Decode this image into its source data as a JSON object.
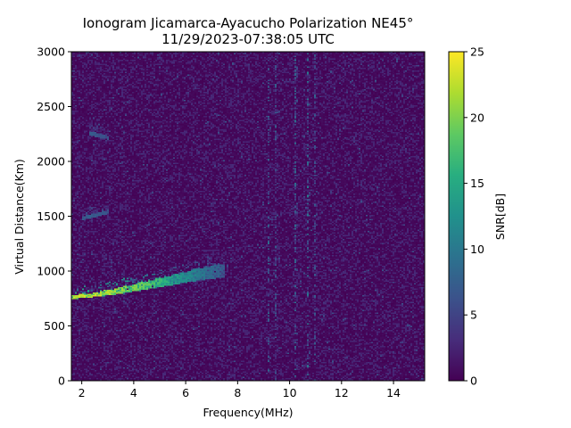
{
  "chart_data": {
    "type": "heatmap",
    "title": "Ionogram Jicamarca-Ayacucho Polarization NE45°",
    "subtitle": "11/29/2023-07:38:05 UTC",
    "xlabel": "Frequency(MHz)",
    "ylabel": "Virtual Distance(Km)",
    "xlim": [
      1.6,
      15.2
    ],
    "ylim": [
      0,
      3000
    ],
    "xticks": [
      2,
      4,
      6,
      8,
      10,
      12,
      14
    ],
    "yticks": [
      0,
      500,
      1000,
      1500,
      2000,
      2500,
      3000
    ],
    "grid": false,
    "colormap": "viridis",
    "colorbar": {
      "label": "SNR[dB]",
      "range": [
        0,
        25
      ],
      "ticks": [
        0,
        5,
        10,
        15,
        20,
        25
      ],
      "colors": [
        "#440154",
        "#472d7b",
        "#3b528b",
        "#2c728e",
        "#21918c",
        "#28ae80",
        "#5ec962",
        "#addc30",
        "#fde725"
      ]
    },
    "background_snr": [
      0,
      3
    ],
    "features": [
      {
        "label": "F-layer trace",
        "x": [
          1.6,
          2.5,
          3.5,
          4.5,
          5.5,
          6.5,
          7.5
        ],
        "y": [
          760,
          780,
          810,
          850,
          890,
          930,
          960
        ],
        "snr": [
          22,
          22,
          20,
          18,
          14,
          10,
          7
        ]
      },
      {
        "label": "2nd hop echo",
        "x": [
          2.0,
          2.5,
          3.0
        ],
        "y": [
          1480,
          1510,
          1540
        ],
        "snr": [
          7,
          7,
          6
        ]
      },
      {
        "label": "3rd hop echo",
        "x": [
          2.3,
          2.6,
          3.0
        ],
        "y": [
          2260,
          2240,
          2220
        ],
        "snr": [
          7,
          6,
          6
        ]
      },
      {
        "label": "interference",
        "x": [
          9.2,
          9.5,
          10.2,
          10.7,
          11.0
        ],
        "snr": [
          9,
          8,
          10,
          11,
          8
        ]
      }
    ]
  }
}
